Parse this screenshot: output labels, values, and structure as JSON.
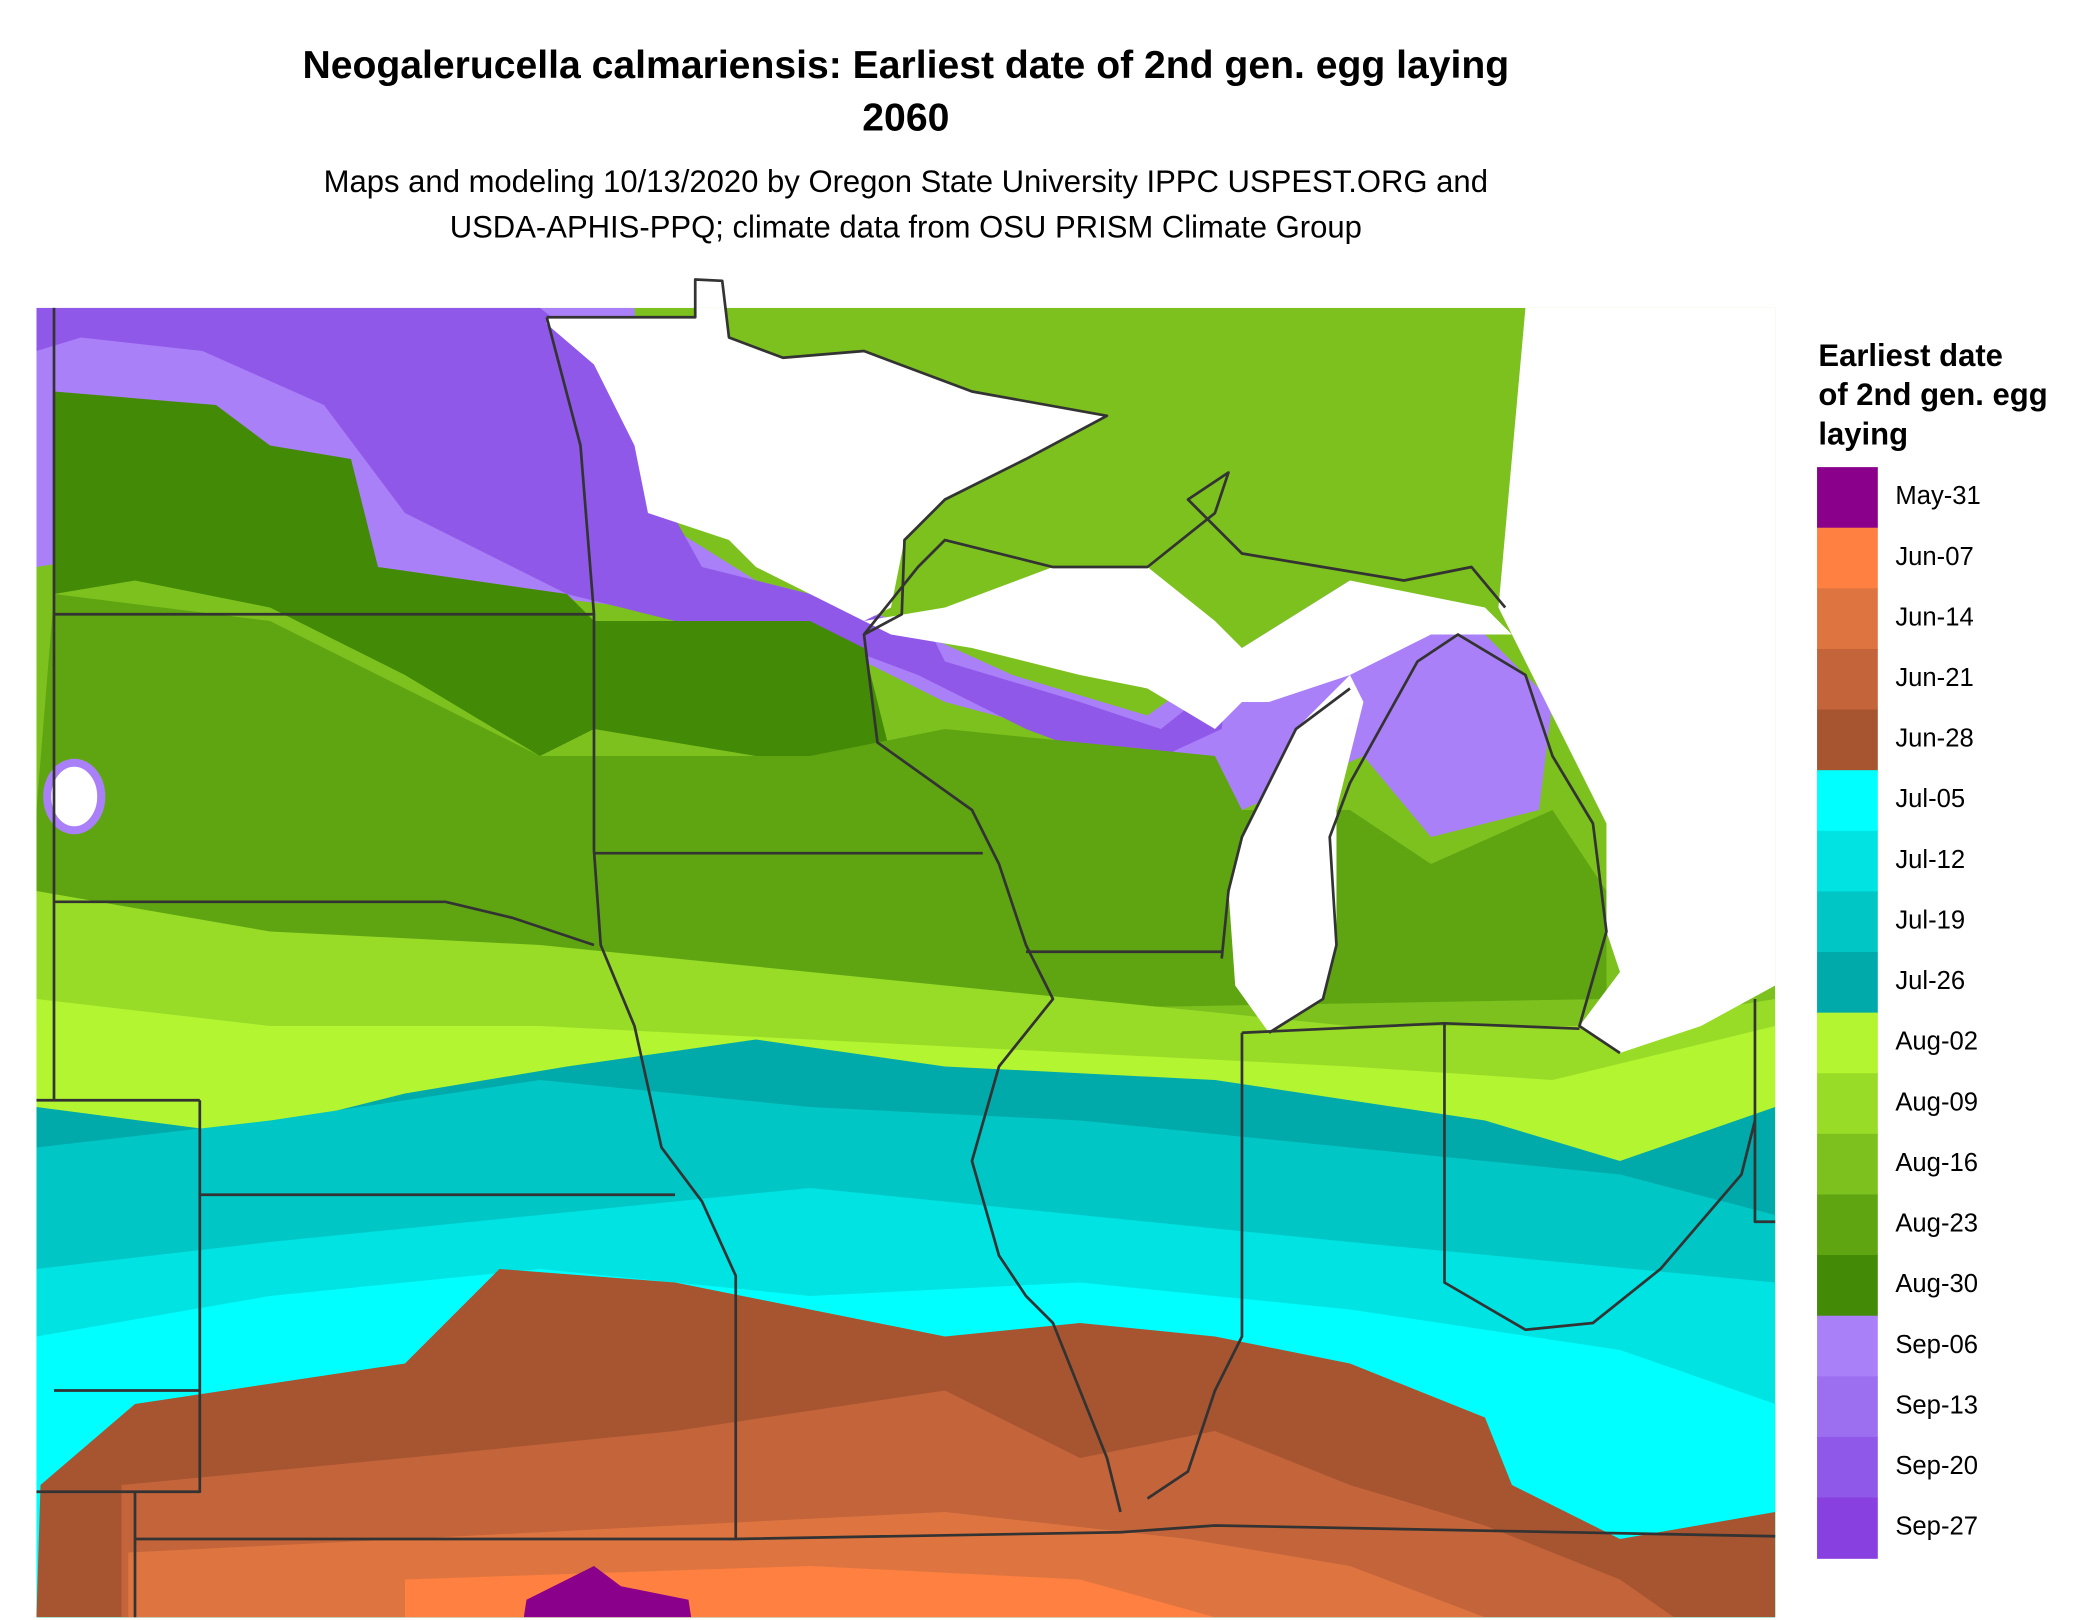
{
  "title": [
    "Neogalerucella calmariensis: Earliest date of 2nd gen. egg laying",
    "2060"
  ],
  "subtitle": [
    "Maps and modeling 10/13/2020 by Oregon State University IPPC USPEST.ORG and",
    "USDA-APHIS-PPQ; climate data from OSU PRISM Climate Group"
  ],
  "legend": {
    "title": [
      "Earliest date",
      "of 2nd gen. egg",
      "laying"
    ],
    "entries": [
      {
        "label": "May-31",
        "color": "#8b008b"
      },
      {
        "label": "Jun-07",
        "color": "#ff8040"
      },
      {
        "label": "Jun-14",
        "color": "#de7540"
      },
      {
        "label": "Jun-21",
        "color": "#c4643a"
      },
      {
        "label": "Jun-28",
        "color": "#a65530"
      },
      {
        "label": "Jul-05",
        "color": "#00ffff"
      },
      {
        "label": "Jul-12",
        "color": "#00e3e3"
      },
      {
        "label": "Jul-19",
        "color": "#00c6c6"
      },
      {
        "label": "Jul-26",
        "color": "#00aaaa"
      },
      {
        "label": "Aug-02",
        "color": "#b3f531"
      },
      {
        "label": "Aug-09",
        "color": "#98dc28"
      },
      {
        "label": "Aug-16",
        "color": "#7cc11e"
      },
      {
        "label": "Aug-23",
        "color": "#5fa512"
      },
      {
        "label": "Aug-30",
        "color": "#438a06"
      },
      {
        "label": "Sep-06",
        "color": "#aa80f8"
      },
      {
        "label": "Sep-13",
        "color": "#9c6ef0"
      },
      {
        "label": "Sep-20",
        "color": "#9058e8"
      },
      {
        "label": "Sep-27",
        "color": "#8840e0"
      }
    ]
  }
}
